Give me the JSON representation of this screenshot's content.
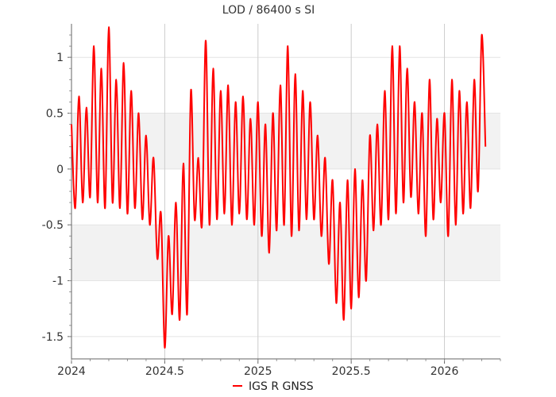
{
  "chart_data": {
    "type": "line",
    "title": "LOD / 86400 s SI",
    "xlabel": "",
    "ylabel": "",
    "xlim": [
      2024.0,
      2026.3
    ],
    "ylim": [
      -1.7,
      1.3
    ],
    "x_ticks": [
      2024,
      2024.5,
      2025,
      2025.5,
      2026
    ],
    "x_tick_labels": [
      "2024",
      "2024.5",
      "2025",
      "2025.5",
      "2026"
    ],
    "y_ticks": [
      1,
      0.5,
      0,
      -0.5,
      -1,
      -1.5
    ],
    "y_tick_labels": [
      "1",
      "0.5",
      "0",
      "-0.5",
      "-1",
      "-1.5"
    ],
    "grid": true,
    "legend": "bottom-center",
    "series": [
      {
        "name": "IGS R GNSS",
        "color": "#ff0000",
        "x": [
          2024.0,
          2024.02,
          2024.04,
          2024.06,
          2024.08,
          2024.1,
          2024.12,
          2024.14,
          2024.16,
          2024.18,
          2024.2,
          2024.22,
          2024.24,
          2024.26,
          2024.28,
          2024.3,
          2024.32,
          2024.34,
          2024.36,
          2024.38,
          2024.4,
          2024.42,
          2024.44,
          2024.46,
          2024.48,
          2024.5,
          2024.52,
          2024.54,
          2024.56,
          2024.58,
          2024.6,
          2024.62,
          2024.64,
          2024.66,
          2024.68,
          2024.7,
          2024.72,
          2024.74,
          2024.76,
          2024.78,
          2024.8,
          2024.82,
          2024.84,
          2024.86,
          2024.88,
          2024.9,
          2024.92,
          2024.94,
          2024.96,
          2024.98,
          2025.0,
          2025.02,
          2025.04,
          2025.06,
          2025.08,
          2025.1,
          2025.12,
          2025.14,
          2025.16,
          2025.18,
          2025.2,
          2025.22,
          2025.24,
          2025.26,
          2025.28,
          2025.3,
          2025.32,
          2025.34,
          2025.36,
          2025.38,
          2025.4,
          2025.42,
          2025.44,
          2025.46,
          2025.48,
          2025.5,
          2025.52,
          2025.54,
          2025.56,
          2025.58,
          2025.6,
          2025.62,
          2025.64,
          2025.66,
          2025.68,
          2025.7,
          2025.72,
          2025.74,
          2025.76,
          2025.78,
          2025.8,
          2025.82,
          2025.84,
          2025.86,
          2025.88,
          2025.9,
          2025.92,
          2025.94,
          2025.96,
          2025.98,
          2026.0,
          2026.02,
          2026.04,
          2026.06,
          2026.08,
          2026.1,
          2026.12,
          2026.14,
          2026.16,
          2026.18,
          2026.2,
          2026.22
        ],
        "y": [
          0.4,
          -0.35,
          0.65,
          -0.3,
          0.55,
          -0.25,
          1.1,
          -0.3,
          0.9,
          -0.35,
          1.27,
          -0.3,
          0.8,
          -0.35,
          0.95,
          -0.4,
          0.7,
          -0.35,
          0.5,
          -0.45,
          0.3,
          -0.5,
          0.1,
          -0.8,
          -0.4,
          -1.6,
          -0.6,
          -1.3,
          -0.3,
          -1.35,
          0.05,
          -1.3,
          0.7,
          -0.45,
          0.1,
          -0.5,
          1.15,
          -0.5,
          0.9,
          -0.45,
          0.7,
          -0.4,
          0.75,
          -0.5,
          0.6,
          -0.4,
          0.65,
          -0.45,
          0.45,
          -0.5,
          0.6,
          -0.6,
          0.4,
          -0.75,
          0.5,
          -0.55,
          0.75,
          -0.5,
          1.1,
          -0.6,
          0.85,
          -0.55,
          0.7,
          -0.45,
          0.6,
          -0.45,
          0.3,
          -0.6,
          0.1,
          -0.85,
          -0.1,
          -1.2,
          -0.3,
          -1.35,
          -0.1,
          -1.25,
          0.0,
          -1.15,
          -0.1,
          -1.0,
          0.3,
          -0.55,
          0.4,
          -0.5,
          0.7,
          -0.45,
          1.1,
          -0.4,
          1.1,
          -0.3,
          0.9,
          -0.25,
          0.6,
          -0.4,
          0.5,
          -0.6,
          0.8,
          -0.45,
          0.45,
          -0.3,
          0.5,
          -0.6,
          0.8,
          -0.5,
          0.7,
          -0.4,
          0.6,
          -0.35,
          0.8,
          -0.2,
          1.2,
          0.2
        ]
      }
    ]
  }
}
